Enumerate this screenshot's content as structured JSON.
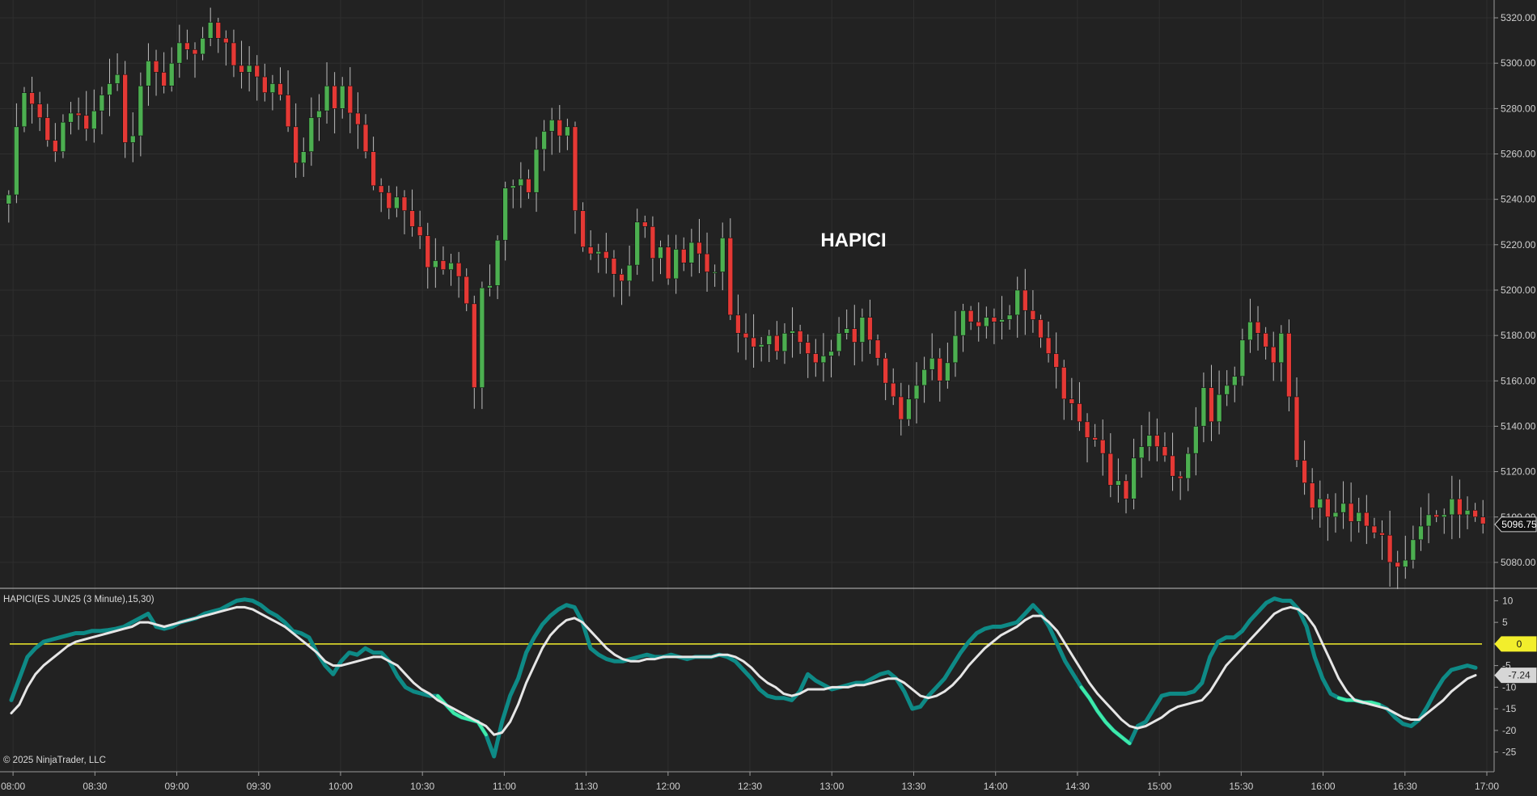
{
  "chart_data": [
    {
      "type": "candlestick",
      "title": "HAPICI",
      "ylim": [
        5070,
        5325
      ],
      "y_ticks": [
        "5080.00",
        "5100.00",
        "5120.00",
        "5140.00",
        "5160.00",
        "5180.00",
        "5200.00",
        "5220.00",
        "5240.00",
        "5260.00",
        "5280.00",
        "5300.00",
        "5320.00"
      ],
      "last_price": "5096.75",
      "colors": {
        "up": "#4CAF50",
        "down": "#E53935",
        "wick": "#bdbdbd",
        "background": "#222222",
        "grid": "#333333"
      },
      "series": [
        {
          "name": "",
          "closes": [
            5242,
            5272,
            5287,
            5282,
            5276,
            5266,
            5261,
            5274,
            5278,
            5277,
            5271,
            5279,
            5286,
            5291,
            5295,
            5265,
            5268,
            5290,
            5301,
            5296,
            5290,
            5300,
            5309,
            5306,
            5304,
            5311,
            5318,
            5311,
            5309,
            5299,
            5296,
            5299,
            5294,
            5287,
            5291,
            5286,
            5272,
            5256,
            5261,
            5276,
            5279,
            5290,
            5280,
            5290,
            5278,
            5273,
            5261,
            5246,
            5243,
            5236,
            5241,
            5235,
            5228,
            5224,
            5210,
            5213,
            5209,
            5212,
            5206,
            5194,
            5157,
            5201,
            5202,
            5222,
            5245,
            5246,
            5249,
            5243,
            5262,
            5270,
            5275,
            5268,
            5272,
            5235,
            5219,
            5216,
            5217,
            5214,
            5207,
            5204,
            5211,
            5230,
            5228,
            5214,
            5219,
            5205,
            5218,
            5212,
            5221,
            5216,
            5208,
            5208,
            5223,
            5189,
            5181,
            5179,
            5175,
            5176,
            5180,
            5173,
            5181,
            5182,
            5177,
            5172,
            5168,
            5171,
            5173,
            5181,
            5183,
            5177,
            5188,
            5178,
            5170,
            5159,
            5153,
            5143,
            5152,
            5158,
            5165,
            5170,
            5160,
            5168,
            5180,
            5191,
            5186,
            5184,
            5188,
            5186,
            5187,
            5189,
            5200,
            5191,
            5187,
            5179,
            5172,
            5166,
            5152,
            5150,
            5142,
            5135,
            5134,
            5128,
            5114,
            5116,
            5108,
            5126,
            5131,
            5136,
            5131,
            5127,
            5118,
            5117,
            5128,
            5140,
            5157,
            5142,
            5154,
            5158,
            5162,
            5178,
            5186,
            5181,
            5175,
            5168,
            5181,
            5153,
            5125,
            5115,
            5104,
            5108,
            5100,
            5102,
            5106,
            5098,
            5102,
            5096,
            5093,
            5092,
            5080,
            5078,
            5081,
            5090,
            5096,
            5101,
            5100,
            5101,
            5108,
            5101,
            5103,
            5100,
            5097
          ]
        }
      ]
    },
    {
      "type": "line",
      "title": "HAPICI(ES JUN25 (3 Minute),15,30)",
      "ylim": [
        -29,
        12.5
      ],
      "y_ticks": [
        "-25",
        "-20",
        "-15",
        "-10",
        "-5",
        "0",
        "5",
        "10"
      ],
      "zero_line": 0,
      "zero_label": "0",
      "last_value": "-7.24",
      "colors": {
        "fast": "#0E8A86",
        "fast_highlight": "#3FEAA8",
        "slow": "#E6E6E6",
        "zero": "#F2EE2C"
      },
      "series": [
        {
          "name": "",
          "values": [
            -13,
            -8,
            -3,
            -1,
            0.5,
            1,
            1.5,
            2,
            2.5,
            2.5,
            3,
            3,
            3.2,
            3.5,
            4,
            5,
            6,
            7,
            4,
            3.5,
            4,
            5,
            5.5,
            6,
            7,
            7.5,
            8,
            9,
            10,
            10.3,
            10,
            9,
            7.5,
            6.5,
            5,
            3,
            2.5,
            1.5,
            -2,
            -5,
            -7,
            -4,
            -2,
            -2.5,
            -1,
            -2,
            -2,
            -4,
            -7.5,
            -10,
            -11,
            -11.5,
            -12,
            -12,
            -14,
            -16,
            -17,
            -17.5,
            -18,
            -21,
            -26,
            -18,
            -12,
            -8,
            -2,
            1.5,
            4.5,
            6.5,
            8,
            9,
            8.5,
            5,
            -1,
            -2.5,
            -3.5,
            -4,
            -4,
            -3.5,
            -3,
            -2.5,
            -3,
            -3,
            -2.5,
            -3,
            -3.5,
            -3,
            -3,
            -3,
            -2.5,
            -3,
            -4,
            -6,
            -8,
            -10.5,
            -12,
            -12.5,
            -12.5,
            -13,
            -11,
            -7,
            -8.5,
            -9.5,
            -10.5,
            -10,
            -9.5,
            -9,
            -9,
            -8,
            -7,
            -6.5,
            -8,
            -11,
            -15,
            -14.5,
            -12,
            -10,
            -8,
            -5,
            -2,
            0.5,
            2.5,
            3.5,
            4,
            4,
            4.5,
            5,
            7,
            9,
            7,
            4,
            0,
            -4,
            -7,
            -10,
            -12.5,
            -15.5,
            -18,
            -20,
            -21.5,
            -23,
            -19,
            -18,
            -15,
            -12,
            -11.5,
            -11.5,
            -11.5,
            -11,
            -9,
            -3,
            0.5,
            1.5,
            1.5,
            3,
            5.5,
            7.5,
            9.5,
            10.5,
            10,
            10,
            8,
            4,
            -3,
            -8,
            -11.5,
            -12.5,
            -13,
            -13,
            -13.5,
            -13.5,
            -14,
            -15,
            -17,
            -18.5,
            -19,
            -17.5,
            -14.5,
            -11,
            -8,
            -6,
            -5.5,
            -5,
            -5.5
          ]
        },
        {
          "name": "",
          "values": [
            -16,
            -14,
            -10,
            -7,
            -5,
            -3.5,
            -2,
            -0.5,
            0.5,
            1,
            1.5,
            2,
            2.5,
            3,
            3.5,
            4,
            5,
            5,
            4.5,
            4,
            4.5,
            5,
            5.5,
            6,
            6.5,
            7,
            7.5,
            8,
            8.5,
            8.5,
            8,
            7,
            6,
            5,
            4,
            2.5,
            1,
            -0.5,
            -2,
            -4,
            -5,
            -5,
            -4.5,
            -4,
            -3.5,
            -3,
            -3,
            -4,
            -5,
            -7,
            -9,
            -10.5,
            -11.5,
            -13,
            -14,
            -15,
            -16,
            -17,
            -18,
            -19,
            -21,
            -20.5,
            -18,
            -14,
            -9,
            -5,
            -1,
            2,
            4,
            5.5,
            6,
            5,
            3,
            1,
            -1,
            -2.5,
            -3.5,
            -4,
            -4,
            -3.5,
            -3.5,
            -3,
            -3,
            -3,
            -3,
            -3,
            -3,
            -3,
            -2.5,
            -2.5,
            -3,
            -4,
            -5.5,
            -7.5,
            -9,
            -10,
            -11.5,
            -12,
            -11.5,
            -10.5,
            -10.5,
            -10.5,
            -10,
            -10,
            -10,
            -9.5,
            -9.5,
            -9,
            -8.5,
            -8,
            -8,
            -9,
            -10.5,
            -12,
            -12.5,
            -12,
            -11,
            -9.5,
            -7.5,
            -5,
            -3,
            -1,
            0.5,
            2,
            3,
            4,
            5.5,
            6.5,
            6.5,
            5,
            3,
            0,
            -3,
            -6,
            -9,
            -11.5,
            -13.5,
            -15.5,
            -17.5,
            -19,
            -19.5,
            -19,
            -18,
            -17,
            -15.5,
            -14.5,
            -14,
            -13.5,
            -13,
            -11,
            -8,
            -5,
            -3,
            -1,
            1,
            3,
            5,
            7,
            8,
            8.5,
            8,
            6.5,
            4,
            0,
            -4,
            -8,
            -11,
            -13,
            -13.5,
            -14,
            -14.5,
            -15,
            -16,
            -17,
            -17.5,
            -17.5,
            -16,
            -14.5,
            -13,
            -11,
            -9.5,
            -8,
            -7.24
          ]
        }
      ],
      "highlight_segments": [
        [
          53,
          59
        ],
        [
          133,
          139
        ],
        [
          165,
          170
        ]
      ]
    }
  ],
  "x_axis": {
    "labels": [
      "08:00",
      "08:30",
      "09:00",
      "09:30",
      "10:00",
      "10:30",
      "11:00",
      "11:30",
      "12:00",
      "12:30",
      "13:00",
      "13:30",
      "14:00",
      "14:30",
      "15:00",
      "15:30",
      "16:00",
      "16:30",
      "17:00"
    ],
    "range": [
      "07:57",
      "17:00"
    ]
  },
  "copyright": "© 2025 NinjaTrader, LLC"
}
